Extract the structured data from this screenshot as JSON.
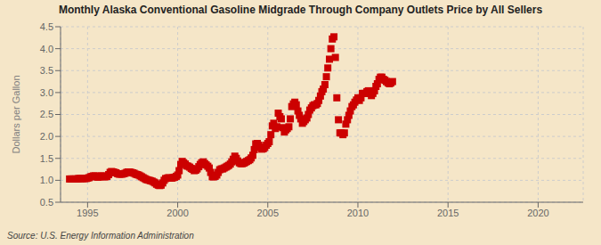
{
  "chart_data": {
    "type": "scatter",
    "title": "Monthly Alaska Conventional Gasoline Midgrade Through Company Outlets Price by All Sellers",
    "y_label": "Dollars per Gallon",
    "annotations": [
      "Source: U.S. Energy Information Administration"
    ],
    "color": "#cc0000",
    "marker": "square",
    "grid": true,
    "xlim": [
      1993.5,
      2022.5
    ],
    "ylim": [
      0.5,
      4.5
    ],
    "xticks": [
      1995,
      2000,
      2005,
      2010,
      2015,
      2020
    ],
    "yticks": [
      0.5,
      {
        "value": 1.0,
        "label": "1.0"
      },
      1.5,
      {
        "value": 2.0,
        "label": "2.0"
      },
      2.5,
      {
        "value": 3.0,
        "label": "3.0"
      },
      3.5,
      {
        "value": 4.0,
        "label": "4.0"
      },
      4.5
    ],
    "x": [
      1994.0,
      1994.08,
      1994.17,
      1994.25,
      1994.33,
      1994.42,
      1994.5,
      1994.58,
      1994.67,
      1994.75,
      1994.83,
      1994.92,
      1995.0,
      1995.08,
      1995.17,
      1995.25,
      1995.33,
      1995.42,
      1995.5,
      1995.58,
      1995.67,
      1995.75,
      1995.83,
      1995.92,
      1996.0,
      1996.08,
      1996.17,
      1996.25,
      1996.33,
      1996.42,
      1996.5,
      1996.58,
      1996.67,
      1996.75,
      1996.83,
      1996.92,
      1997.0,
      1997.08,
      1997.17,
      1997.25,
      1997.33,
      1997.42,
      1997.5,
      1997.58,
      1997.67,
      1997.75,
      1997.83,
      1997.92,
      1998.0,
      1998.08,
      1998.17,
      1998.25,
      1998.33,
      1998.42,
      1998.5,
      1998.58,
      1998.67,
      1998.75,
      1998.83,
      1998.92,
      1999.0,
      1999.08,
      1999.17,
      1999.25,
      1999.33,
      1999.42,
      1999.5,
      1999.58,
      1999.67,
      1999.75,
      1999.83,
      1999.92,
      2000.0,
      2000.08,
      2000.17,
      2000.25,
      2000.33,
      2000.42,
      2000.5,
      2000.58,
      2000.67,
      2000.75,
      2000.83,
      2000.92,
      2001.0,
      2001.08,
      2001.17,
      2001.25,
      2001.33,
      2001.42,
      2001.5,
      2001.58,
      2001.67,
      2001.75,
      2001.83,
      2001.92,
      2002.0,
      2002.08,
      2002.17,
      2002.25,
      2002.33,
      2002.42,
      2002.5,
      2002.58,
      2002.67,
      2002.75,
      2002.83,
      2002.92,
      2003.0,
      2003.08,
      2003.17,
      2003.25,
      2003.33,
      2003.42,
      2003.5,
      2003.58,
      2003.67,
      2003.75,
      2003.83,
      2003.92,
      2004.0,
      2004.08,
      2004.17,
      2004.25,
      2004.33,
      2004.42,
      2004.5,
      2004.58,
      2004.67,
      2004.75,
      2004.83,
      2004.92,
      2005.0,
      2005.08,
      2005.17,
      2005.25,
      2005.33,
      2005.42,
      2005.5,
      2005.58,
      2005.67,
      2005.75,
      2005.83,
      2005.92,
      2006.0,
      2006.08,
      2006.17,
      2006.25,
      2006.33,
      2006.42,
      2006.5,
      2006.58,
      2006.67,
      2006.75,
      2006.83,
      2006.92,
      2007.0,
      2007.08,
      2007.17,
      2007.25,
      2007.33,
      2007.42,
      2007.5,
      2007.58,
      2007.67,
      2007.75,
      2007.83,
      2007.92,
      2008.0,
      2008.08,
      2008.17,
      2008.25,
      2008.33,
      2008.42,
      2008.5,
      2008.58,
      2008.67,
      2008.75,
      2008.83,
      2008.92,
      2009.0,
      2009.08,
      2009.17,
      2009.25,
      2009.33,
      2009.42,
      2009.5,
      2009.58,
      2009.67,
      2009.75,
      2009.83,
      2009.92,
      2010.0,
      2010.08,
      2010.17,
      2010.25,
      2010.33,
      2010.42,
      2010.5,
      2010.58,
      2010.67,
      2010.75,
      2010.83,
      2010.92,
      2011.0,
      2011.08,
      2011.17,
      2011.25,
      2011.33,
      2011.42,
      2011.5,
      2011.58,
      2011.67,
      2011.75,
      2011.83,
      2011.92
    ],
    "values": [
      1.03,
      1.03,
      1.03,
      1.03,
      1.03,
      1.03,
      1.04,
      1.04,
      1.04,
      1.04,
      1.04,
      1.04,
      1.05,
      1.06,
      1.08,
      1.09,
      1.1,
      1.1,
      1.08,
      1.07,
      1.08,
      1.1,
      1.1,
      1.08,
      1.08,
      1.09,
      1.13,
      1.18,
      1.2,
      1.19,
      1.18,
      1.17,
      1.15,
      1.14,
      1.14,
      1.14,
      1.15,
      1.16,
      1.18,
      1.19,
      1.19,
      1.18,
      1.17,
      1.16,
      1.14,
      1.13,
      1.12,
      1.1,
      1.08,
      1.06,
      1.04,
      1.02,
      1.01,
      1.0,
      0.99,
      0.98,
      0.96,
      0.94,
      0.91,
      0.89,
      0.88,
      0.89,
      0.94,
      1.0,
      1.04,
      1.05,
      1.06,
      1.05,
      1.05,
      1.06,
      1.07,
      1.09,
      1.12,
      1.22,
      1.36,
      1.43,
      1.4,
      1.37,
      1.33,
      1.32,
      1.3,
      1.27,
      1.25,
      1.22,
      1.23,
      1.26,
      1.31,
      1.36,
      1.4,
      1.42,
      1.38,
      1.35,
      1.32,
      1.28,
      1.18,
      1.08,
      1.08,
      1.09,
      1.12,
      1.18,
      1.24,
      1.26,
      1.26,
      1.28,
      1.3,
      1.32,
      1.34,
      1.37,
      1.42,
      1.48,
      1.55,
      1.5,
      1.44,
      1.4,
      1.38,
      1.38,
      1.39,
      1.41,
      1.43,
      1.45,
      1.47,
      1.51,
      1.57,
      1.7,
      1.83,
      1.84,
      1.8,
      1.75,
      1.71,
      1.72,
      1.75,
      1.8,
      1.84,
      1.88,
      2.04,
      2.24,
      2.3,
      2.18,
      2.22,
      2.53,
      2.45,
      2.4,
      2.2,
      2.1,
      2.15,
      2.18,
      2.22,
      2.4,
      2.68,
      2.74,
      2.78,
      2.72,
      2.58,
      2.48,
      2.4,
      2.3,
      2.34,
      2.38,
      2.42,
      2.5,
      2.6,
      2.65,
      2.7,
      2.72,
      2.72,
      2.75,
      2.82,
      2.92,
      3.02,
      3.08,
      3.18,
      3.36,
      3.56,
      3.76,
      4.0,
      4.22,
      4.27,
      3.8,
      2.88,
      2.38,
      2.08,
      2.08,
      2.04,
      2.08,
      2.28,
      2.38,
      2.48,
      2.58,
      2.68,
      2.72,
      2.78,
      2.83,
      2.88,
      2.82,
      2.88,
      2.98,
      2.98,
      2.98,
      3.02,
      3.04,
      2.98,
      2.93,
      2.98,
      3.04,
      3.14,
      3.2,
      3.3,
      3.35,
      3.35,
      3.3,
      3.28,
      3.25,
      3.22,
      3.2,
      3.22,
      3.25
    ]
  }
}
